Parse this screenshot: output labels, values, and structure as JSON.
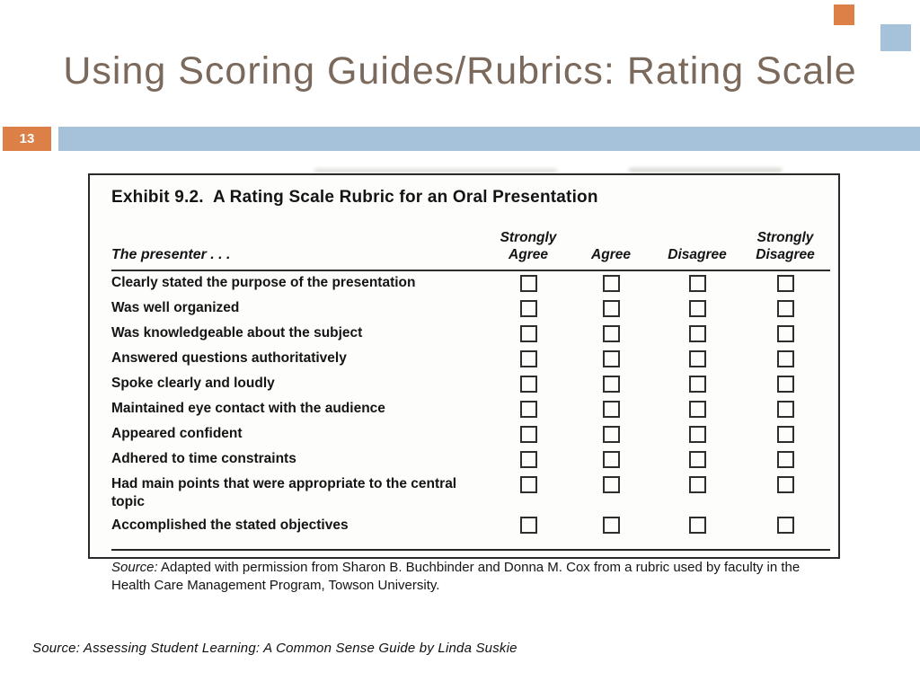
{
  "slide": {
    "title": "Using Scoring Guides/Rubrics: Rating Scale",
    "page_number": "13",
    "footer_caption": "Source: Assessing Student Learning: A Common Sense Guide by Linda Suskie"
  },
  "colors": {
    "title_brown": "#7b695c",
    "accent_orange": "#dd8047",
    "accent_blue": "#a6c2db"
  },
  "exhibit": {
    "heading": "Exhibit 9.2.  A Rating Scale Rubric for an Oral Presentation",
    "presenter_label": "The presenter . . .",
    "columns": [
      {
        "line1": "Strongly",
        "line2": "Agree"
      },
      {
        "line1": "",
        "line2": "Agree"
      },
      {
        "line1": "",
        "line2": "Disagree"
      },
      {
        "line1": "Strongly",
        "line2": "Disagree"
      }
    ],
    "rows": [
      "Clearly stated the purpose of the presentation",
      "Was well organized",
      "Was knowledgeable about the subject",
      "Answered questions authoritatively",
      "Spoke clearly and loudly",
      "Maintained eye contact with the audience",
      "Appeared confident",
      "Adhered to time constraints",
      "Had main points that were appropriate to the central topic",
      "Accomplished the stated objectives"
    ],
    "source_prefix": "Source:",
    "source_text": " Adapted with permission from Sharon B. Buchbinder and Donna M. Cox from a rubric used by faculty in the Health Care Management Program, Towson University."
  }
}
